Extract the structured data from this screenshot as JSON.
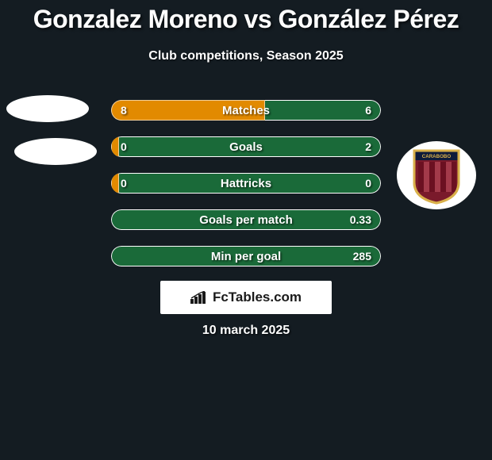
{
  "background_color": "#141c22",
  "header": {
    "title": "Gonzalez Moreno vs González Pérez",
    "subtitle": "Club competitions, Season 2025"
  },
  "colors": {
    "bar_right": "#1a6a39",
    "bar_left": "#e28a00",
    "bar_border": "#ffffff"
  },
  "stats": [
    {
      "label": "Matches",
      "left_value": "8",
      "right_value": "6",
      "left_pct": 57.0
    },
    {
      "label": "Goals",
      "left_value": "0",
      "right_value": "2",
      "left_pct": 3.0
    },
    {
      "label": "Hattricks",
      "left_value": "0",
      "right_value": "0",
      "left_pct": 3.0
    },
    {
      "label": "Goals per match",
      "left_value": "",
      "right_value": "0.33",
      "left_pct": 0.0
    },
    {
      "label": "Min per goal",
      "left_value": "",
      "right_value": "285",
      "left_pct": 0.0
    }
  ],
  "brand": {
    "text": "FcTables.com"
  },
  "date": "10 march 2025",
  "right_crest": {
    "shield_main": "#7a1a2b",
    "shield_trim": "#d9b04a",
    "stripe_a": "#6b1021",
    "stripe_b": "#a33a4a",
    "banner_text": "CARABOBO"
  }
}
